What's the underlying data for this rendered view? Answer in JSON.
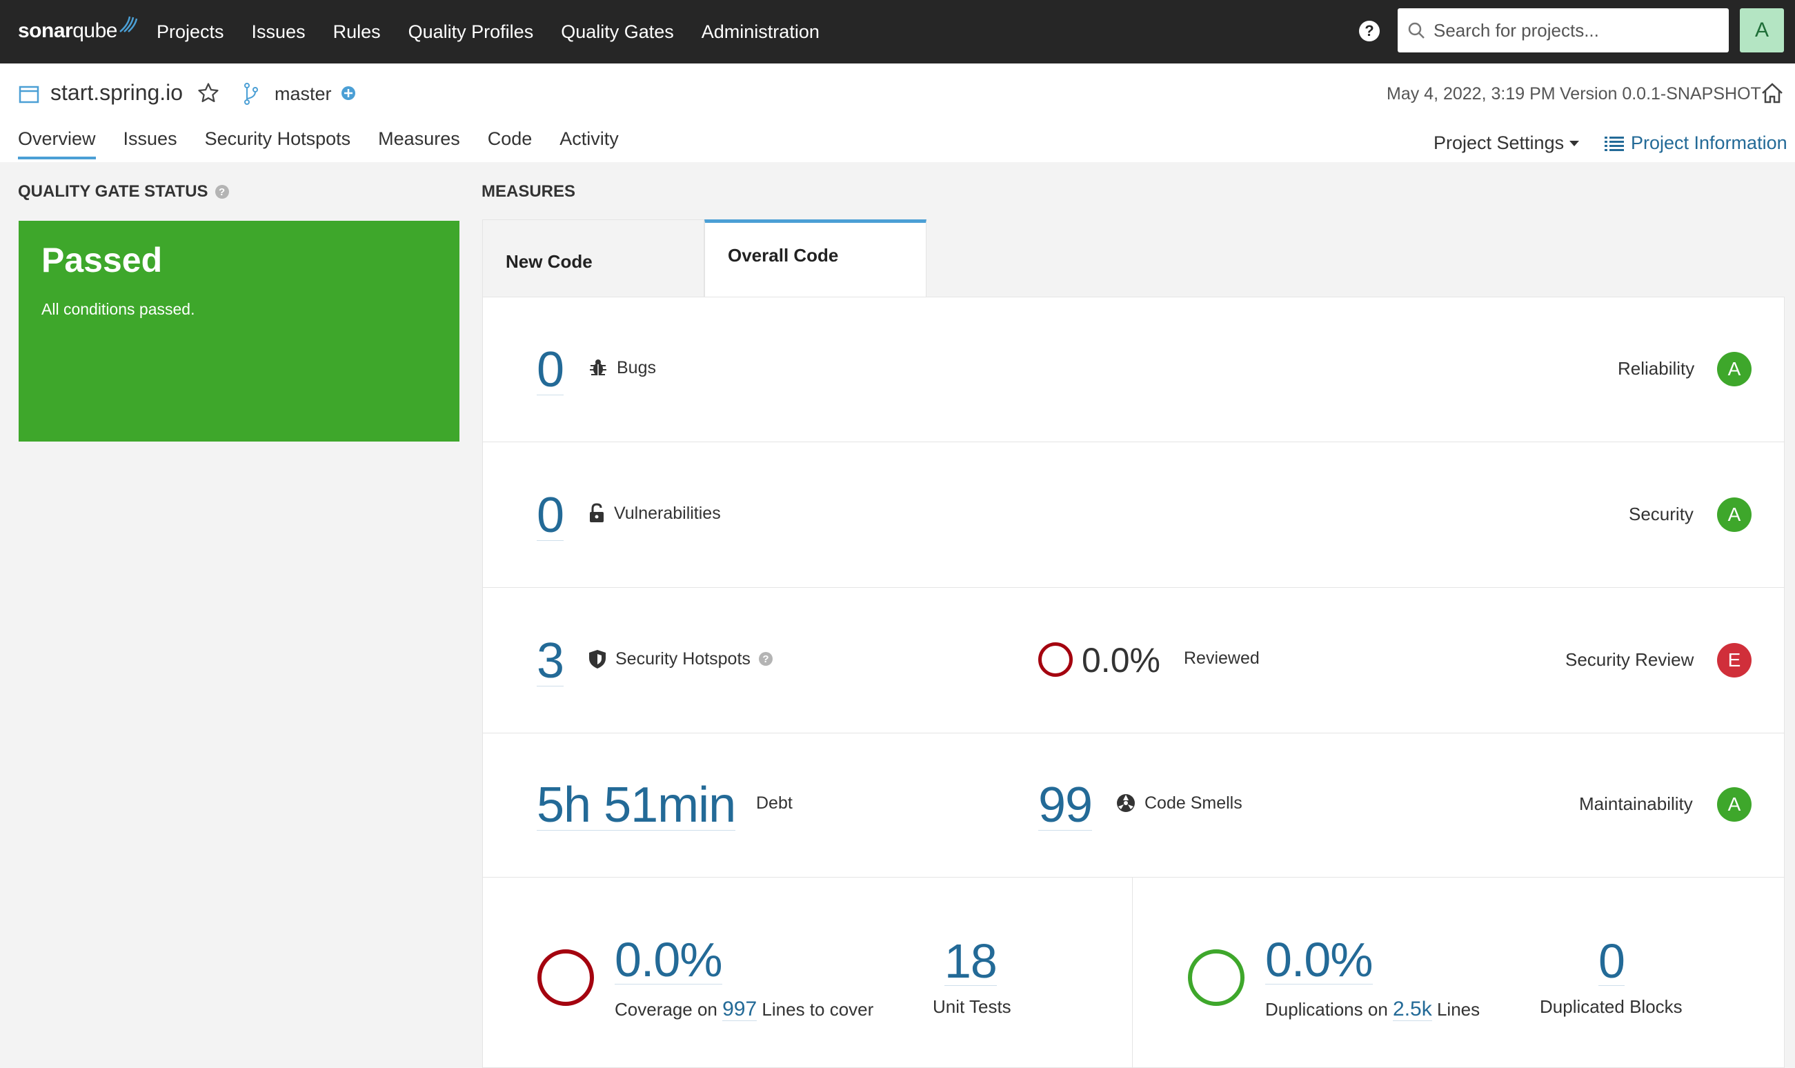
{
  "nav": {
    "logo_bold": "sonar",
    "logo_rest": "qube",
    "items": [
      "Projects",
      "Issues",
      "Rules",
      "Quality Profiles",
      "Quality Gates",
      "Administration"
    ],
    "search_placeholder": "Search for projects...",
    "avatar_letter": "A"
  },
  "project": {
    "name": "start.spring.io",
    "branch": "master",
    "date": "May 4, 2022, 3:19 PM",
    "version": "Version 0.0.1-SNAPSHOT",
    "tabs": [
      "Overview",
      "Issues",
      "Security Hotspots",
      "Measures",
      "Code",
      "Activity"
    ],
    "active_tab": "Overview",
    "settings_label": "Project Settings",
    "info_label": "Project Information"
  },
  "quality_gate": {
    "title": "QUALITY GATE STATUS",
    "status": "Passed",
    "message": "All conditions passed.",
    "color": "#3ea72b"
  },
  "measures": {
    "title": "MEASURES",
    "tabs": {
      "new": "New Code",
      "overall": "Overall Code"
    },
    "bugs": {
      "value": "0",
      "label": "Bugs",
      "rating_name": "Reliability",
      "rating": "A"
    },
    "vulnerabilities": {
      "value": "0",
      "label": "Vulnerabilities",
      "rating_name": "Security",
      "rating": "A"
    },
    "hotspots": {
      "value": "3",
      "label": "Security Hotspots",
      "reviewed_pct": "0.0%",
      "reviewed_label": "Reviewed",
      "rating_name": "Security Review",
      "rating": "E"
    },
    "maintainability": {
      "debt": "5h 51min",
      "debt_label": "Debt",
      "smells": "99",
      "smells_label": "Code Smells",
      "rating_name": "Maintainability",
      "rating": "A"
    },
    "coverage": {
      "pct": "0.0%",
      "prefix": "Coverage on",
      "lines": "997",
      "suffix": "Lines to cover",
      "unit_tests": "18",
      "unit_tests_label": "Unit Tests"
    },
    "duplications": {
      "pct": "0.0%",
      "prefix": "Duplications on",
      "lines": "2.5k",
      "suffix": "Lines",
      "blocks": "0",
      "blocks_label": "Duplicated Blocks"
    }
  },
  "colors": {
    "accent": "#4b9fd5",
    "link": "#236a97",
    "rating_a": "#3ea72b",
    "rating_e": "#d02f3a",
    "ring_bad": "#a4030f",
    "ring_good": "#3ea72b"
  }
}
